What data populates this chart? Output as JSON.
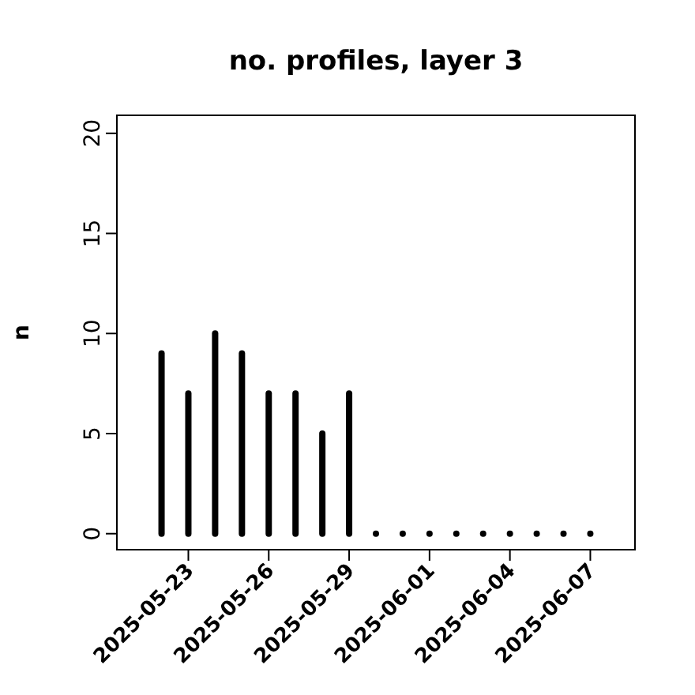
{
  "chart_data": {
    "type": "bar",
    "title": "no. profiles, layer 3",
    "ylabel": "n",
    "x": [
      "2025-05-22",
      "2025-05-23",
      "2025-05-24",
      "2025-05-25",
      "2025-05-26",
      "2025-05-27",
      "2025-05-28",
      "2025-05-29",
      "2025-05-30",
      "2025-05-31",
      "2025-06-01",
      "2025-06-02",
      "2025-06-03",
      "2025-06-04",
      "2025-06-05",
      "2025-06-06",
      "2025-06-07"
    ],
    "values": [
      9,
      7,
      10,
      9,
      7,
      7,
      5,
      7,
      0,
      0,
      0,
      0,
      0,
      0,
      0,
      0,
      0
    ],
    "color": "#000000",
    "xlim": [
      "2025-05-20T08:00",
      "2025-06-08T16:00"
    ],
    "xticks": [
      {
        "value": "2025-05-23",
        "label": "2025-05-23"
      },
      {
        "value": "2025-05-26",
        "label": "2025-05-26"
      },
      {
        "value": "2025-05-29",
        "label": "2025-05-29"
      },
      {
        "value": "2025-06-01",
        "label": "2025-06-01"
      },
      {
        "value": "2025-06-04",
        "label": "2025-06-04"
      },
      {
        "value": "2025-06-07",
        "label": "2025-06-07"
      }
    ],
    "ylim": [
      -0.8,
      20.9
    ],
    "yticks": [
      0,
      5,
      10,
      15,
      20
    ],
    "grid": false
  }
}
